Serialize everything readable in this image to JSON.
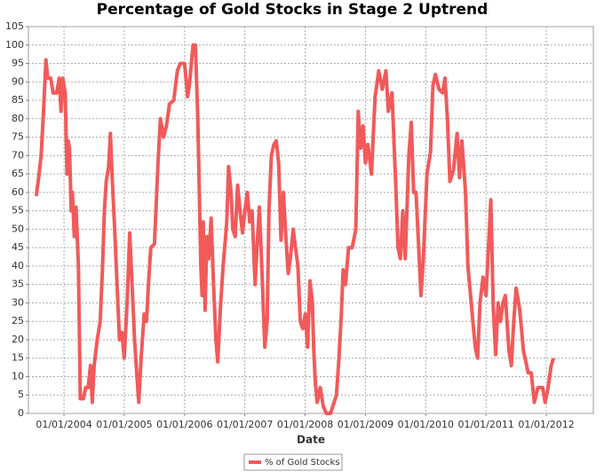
{
  "chart_data": {
    "type": "line",
    "title": "Percentage of Gold Stocks in Stage 2 Uptrend",
    "x_label": "Date",
    "x": [
      2003.54,
      2003.58,
      2003.62,
      2003.66,
      2003.7,
      2003.73,
      2003.78,
      2003.82,
      2003.88,
      2003.92,
      2003.95,
      2003.98,
      2004.02,
      2004.05,
      2004.07,
      2004.09,
      2004.12,
      2004.14,
      2004.17,
      2004.2,
      2004.24,
      2004.27,
      2004.32,
      2004.36,
      2004.4,
      2004.44,
      2004.47,
      2004.5,
      2004.55,
      2004.6,
      2004.64,
      2004.67,
      2004.7,
      2004.74,
      2004.77,
      2004.8,
      2004.84,
      2004.88,
      2004.92,
      2004.96,
      2005.0,
      2005.05,
      2005.09,
      2005.13,
      2005.17,
      2005.21,
      2005.24,
      2005.28,
      2005.33,
      2005.37,
      2005.4,
      2005.44,
      2005.5,
      2005.56,
      2005.6,
      2005.65,
      2005.7,
      2005.75,
      2005.82,
      2005.88,
      2005.93,
      2006.0,
      2006.05,
      2006.08,
      2006.14,
      2006.18,
      2006.22,
      2006.27,
      2006.29,
      2006.31,
      2006.34,
      2006.37,
      2006.4,
      2006.44,
      2006.48,
      2006.52,
      2006.55,
      2006.6,
      2006.64,
      2006.7,
      2006.73,
      2006.77,
      2006.8,
      2006.84,
      2006.88,
      2006.92,
      2006.96,
      2007.0,
      2007.04,
      2007.08,
      2007.12,
      2007.17,
      2007.2,
      2007.24,
      2007.28,
      2007.33,
      2007.37,
      2007.4,
      2007.44,
      2007.48,
      2007.52,
      2007.56,
      2007.6,
      2007.64,
      2007.68,
      2007.72,
      2007.76,
      2007.8,
      2007.84,
      2007.88,
      2007.92,
      2007.96,
      2008.0,
      2008.04,
      2008.08,
      2008.12,
      2008.14,
      2008.17,
      2008.2,
      2008.25,
      2008.3,
      2008.35,
      2008.42,
      2008.48,
      2008.52,
      2008.56,
      2008.6,
      2008.63,
      2008.67,
      2008.72,
      2008.78,
      2008.84,
      2008.88,
      2008.92,
      2008.96,
      2009.0,
      2009.04,
      2009.1,
      2009.16,
      2009.22,
      2009.28,
      2009.34,
      2009.38,
      2009.44,
      2009.5,
      2009.54,
      2009.58,
      2009.62,
      2009.66,
      2009.72,
      2009.76,
      2009.8,
      2009.84,
      2009.88,
      2009.92,
      2009.96,
      2010.02,
      2010.08,
      2010.12,
      2010.16,
      2010.22,
      2010.28,
      2010.32,
      2010.36,
      2010.4,
      2010.46,
      2010.52,
      2010.56,
      2010.6,
      2010.66,
      2010.7,
      2010.76,
      2010.82,
      2010.86,
      2010.9,
      2010.95,
      2011.0,
      2011.04,
      2011.08,
      2011.12,
      2011.16,
      2011.2,
      2011.24,
      2011.28,
      2011.32,
      2011.38,
      2011.42,
      2011.46,
      2011.5,
      2011.56,
      2011.62,
      2011.66,
      2011.7,
      2011.75,
      2011.8,
      2011.86,
      2011.94,
      2011.98,
      2012.03,
      2012.08,
      2012.12
    ],
    "series": [
      {
        "name": "% of Gold Stocks",
        "color": "#f25a5a",
        "values": [
          59,
          64,
          70,
          82,
          96,
          91,
          91,
          87,
          87,
          91,
          82,
          91,
          87,
          65,
          74,
          72,
          55,
          60,
          48,
          56,
          40,
          4,
          4,
          7,
          7,
          13,
          3,
          13,
          20,
          25,
          40,
          55,
          63,
          67,
          76,
          64,
          50,
          35,
          20,
          22,
          15,
          31,
          49,
          35,
          20,
          10,
          3,
          15,
          27,
          25,
          35,
          45,
          46,
          68,
          80,
          75,
          78,
          84,
          85,
          93,
          95,
          95,
          86,
          89,
          100,
          100,
          80,
          40,
          32,
          52,
          28,
          48,
          42,
          53,
          35,
          20,
          14,
          30,
          40,
          52,
          67,
          60,
          50,
          48,
          62,
          55,
          49,
          55,
          60,
          52,
          55,
          35,
          45,
          56,
          40,
          18,
          25,
          55,
          70,
          73,
          74,
          68,
          47,
          60,
          48,
          38,
          43,
          50,
          45,
          40,
          25,
          23,
          27,
          18,
          36,
          30,
          18,
          8,
          3,
          7,
          2,
          0,
          0,
          3,
          5,
          15,
          27,
          39,
          35,
          45,
          45,
          50,
          82,
          72,
          78,
          68,
          73,
          65,
          86,
          93,
          88,
          93,
          82,
          87,
          63,
          45,
          42,
          55,
          42,
          70,
          79,
          60,
          60,
          46,
          32,
          42,
          65,
          71,
          89,
          92,
          88,
          87,
          91,
          80,
          63,
          66,
          76,
          64,
          74,
          60,
          40,
          29,
          18,
          15,
          30,
          37,
          32,
          45,
          58,
          29,
          16,
          30,
          25,
          30,
          32,
          17,
          13,
          25,
          34,
          28,
          17,
          14,
          11,
          11,
          3,
          7,
          7,
          3,
          7,
          13,
          15
        ]
      }
    ],
    "xlim": [
      2003.41,
      2012.78
    ],
    "xticks": [
      {
        "value": 2004,
        "label": "01/01/2004"
      },
      {
        "value": 2005,
        "label": "01/01/2005"
      },
      {
        "value": 2006,
        "label": "01/01/2006"
      },
      {
        "value": 2007,
        "label": "01/01/2007"
      },
      {
        "value": 2008,
        "label": "01/01/2008"
      },
      {
        "value": 2009,
        "label": "01/01/2009"
      },
      {
        "value": 2010,
        "label": "01/01/2010"
      },
      {
        "value": 2011,
        "label": "01/01/2011"
      },
      {
        "value": 2012,
        "label": "01/01/2012"
      }
    ],
    "ylim": [
      0,
      105
    ],
    "yticks": [
      0,
      5,
      10,
      15,
      20,
      25,
      30,
      35,
      40,
      45,
      50,
      55,
      60,
      65,
      70,
      75,
      80,
      85,
      90,
      95,
      100,
      105
    ],
    "grid": true,
    "legend": "bottom"
  }
}
